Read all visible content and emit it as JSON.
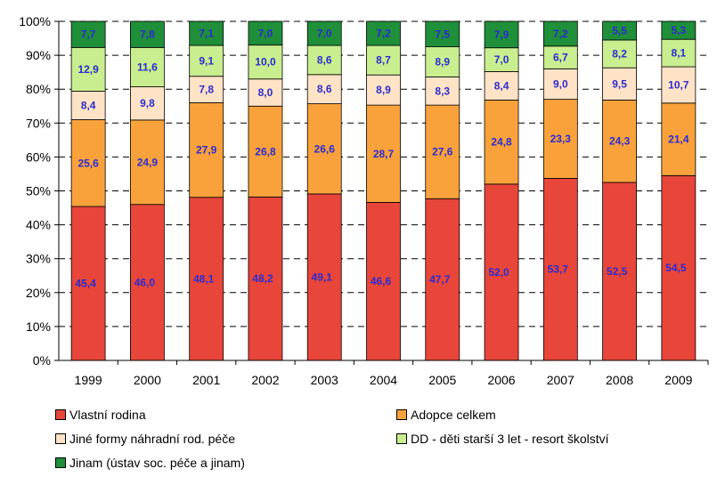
{
  "chart_data": {
    "type": "bar",
    "stacked": true,
    "percent": true,
    "categories": [
      "1999",
      "2000",
      "2001",
      "2002",
      "2003",
      "2004",
      "2005",
      "2006",
      "2007",
      "2008",
      "2009"
    ],
    "series": [
      {
        "name": "Vlastní rodina",
        "color": "#e8463a",
        "values": [
          45.4,
          46.0,
          48.1,
          48.2,
          49.1,
          46.6,
          47.7,
          52.0,
          53.7,
          52.5,
          54.5
        ],
        "labels": [
          "45,4",
          "46,0",
          "48,1",
          "48,2",
          "49,1",
          "46,6",
          "47,7",
          "52,0",
          "53,7",
          "52,5",
          "54,5"
        ]
      },
      {
        "name": "Adopce celkem",
        "color": "#f9a23c",
        "values": [
          25.6,
          24.9,
          27.9,
          26.8,
          26.6,
          28.7,
          27.6,
          24.8,
          23.3,
          24.3,
          21.4
        ],
        "labels": [
          "25,6",
          "24,9",
          "27,9",
          "26,8",
          "26,6",
          "28,7",
          "27,6",
          "24,8",
          "23,3",
          "24,3",
          "21,4"
        ]
      },
      {
        "name": "Jiné formy náhradní rod. péče",
        "color": "#ffe3c6",
        "values": [
          8.4,
          9.8,
          7.8,
          8.0,
          8.6,
          8.9,
          8.3,
          8.4,
          9.0,
          9.5,
          10.7
        ],
        "labels": [
          "8,4",
          "9,8",
          "7,8",
          "8,0",
          "8,6",
          "8,9",
          "8,3",
          "8,4",
          "9,0",
          "9,5",
          "10,7"
        ]
      },
      {
        "name": "DD - děti starší 3 let - resort školství",
        "color": "#c9ee8f",
        "values": [
          12.9,
          11.6,
          9.1,
          10.0,
          8.6,
          8.7,
          8.9,
          7.0,
          6.7,
          8.2,
          8.1
        ],
        "labels": [
          "12,9",
          "11,6",
          "9,1",
          "10,0",
          "8,6",
          "8,7",
          "8,9",
          "7,0",
          "6,7",
          "8,2",
          "8,1"
        ]
      },
      {
        "name": "Jinam (ústav soc. péče a jinam)",
        "color": "#1f8f3a",
        "values": [
          7.7,
          7.8,
          7.1,
          7.0,
          7.0,
          7.2,
          7.5,
          7.9,
          7.2,
          5.5,
          5.3
        ],
        "labels": [
          "7,7",
          "7,8",
          "7,1",
          "7,0",
          "7,0",
          "7,2",
          "7,5",
          "7,9",
          "7,2",
          "5,5",
          "5,3"
        ]
      }
    ],
    "yticks": [
      "0%",
      "10%",
      "20%",
      "30%",
      "40%",
      "50%",
      "60%",
      "70%",
      "80%",
      "90%",
      "100%"
    ],
    "ylim": [
      0,
      100
    ],
    "grid": "dashed horizontal",
    "legend_position": "bottom"
  }
}
